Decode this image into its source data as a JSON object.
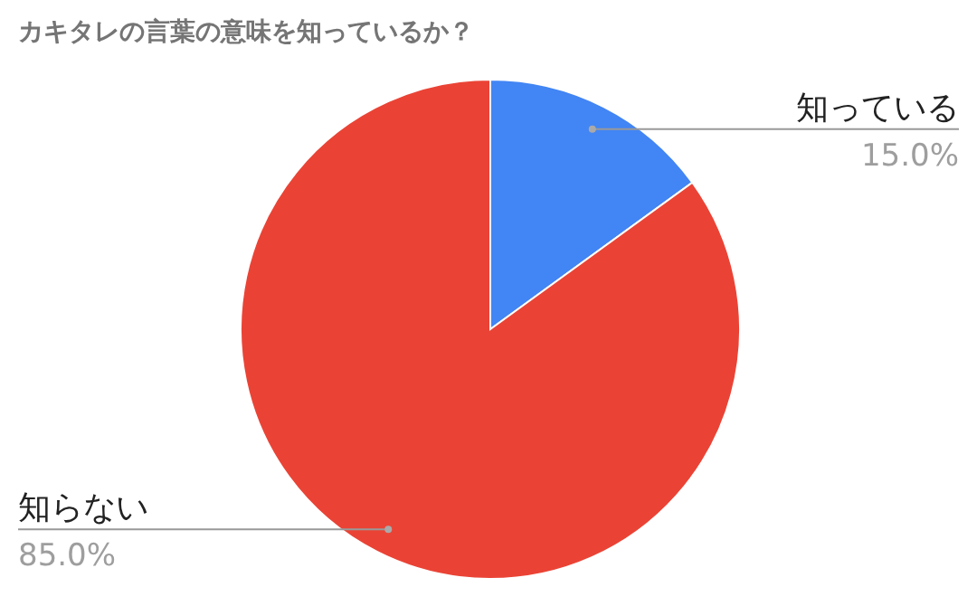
{
  "chart_data": {
    "type": "pie",
    "title": "カキタレの言葉の意味を知っているか？",
    "categories": [
      "知っている",
      "知らない"
    ],
    "values": [
      15.0,
      85.0
    ],
    "colors": [
      "#4285f4",
      "#ea4335"
    ],
    "value_labels": [
      "15.0%",
      "85.0%"
    ]
  }
}
